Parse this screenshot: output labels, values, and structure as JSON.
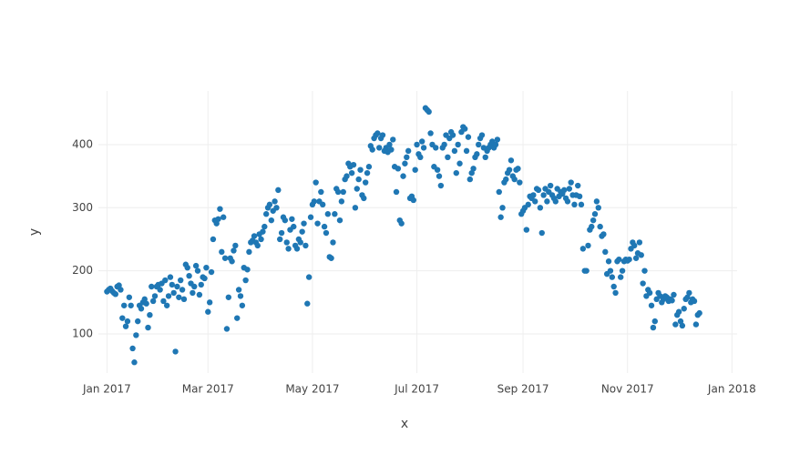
{
  "chart_data": {
    "type": "scatter",
    "x_label": "x",
    "y_label": "y",
    "color": "#1f77b4",
    "grid": true,
    "xlim": [
      "2016-12-27",
      "2018-01-04"
    ],
    "ylim": [
      38,
      485
    ],
    "xticks": [
      {
        "value": "2017-01-01",
        "label": "Jan 2017"
      },
      {
        "value": "2017-03-01",
        "label": "Mar 2017"
      },
      {
        "value": "2017-05-01",
        "label": "May 2017"
      },
      {
        "value": "2017-07-01",
        "label": "Jul 2017"
      },
      {
        "value": "2017-09-01",
        "label": "Sep 2017"
      },
      {
        "value": "2017-11-01",
        "label": "Nov 2017"
      },
      {
        "value": "2018-01-01",
        "label": "Jan 2018"
      }
    ],
    "yticks": [
      100,
      200,
      300,
      400
    ],
    "x": [
      "2017-01-01",
      "2017-01-02",
      "2017-01-03",
      "2017-01-04",
      "2017-01-05",
      "2017-01-06",
      "2017-01-07",
      "2017-01-08",
      "2017-01-09",
      "2017-01-10",
      "2017-01-11",
      "2017-01-12",
      "2017-01-13",
      "2017-01-14",
      "2017-01-15",
      "2017-01-16",
      "2017-01-17",
      "2017-01-18",
      "2017-01-19",
      "2017-01-20",
      "2017-01-21",
      "2017-01-22",
      "2017-01-23",
      "2017-01-24",
      "2017-01-25",
      "2017-01-26",
      "2017-01-27",
      "2017-01-28",
      "2017-01-29",
      "2017-01-30",
      "2017-01-31",
      "2017-02-01",
      "2017-02-02",
      "2017-02-03",
      "2017-02-04",
      "2017-02-05",
      "2017-02-06",
      "2017-02-07",
      "2017-02-08",
      "2017-02-09",
      "2017-02-10",
      "2017-02-11",
      "2017-02-12",
      "2017-02-13",
      "2017-02-14",
      "2017-02-15",
      "2017-02-16",
      "2017-02-17",
      "2017-02-18",
      "2017-02-19",
      "2017-02-20",
      "2017-02-21",
      "2017-02-22",
      "2017-02-23",
      "2017-02-24",
      "2017-02-25",
      "2017-02-26",
      "2017-02-27",
      "2017-02-28",
      "2017-03-01",
      "2017-03-02",
      "2017-03-03",
      "2017-03-04",
      "2017-03-05",
      "2017-03-06",
      "2017-03-07",
      "2017-03-08",
      "2017-03-09",
      "2017-03-10",
      "2017-03-11",
      "2017-03-12",
      "2017-03-13",
      "2017-03-14",
      "2017-03-15",
      "2017-03-16",
      "2017-03-17",
      "2017-03-18",
      "2017-03-19",
      "2017-03-20",
      "2017-03-21",
      "2017-03-22",
      "2017-03-23",
      "2017-03-24",
      "2017-03-25",
      "2017-03-26",
      "2017-03-27",
      "2017-03-28",
      "2017-03-29",
      "2017-03-30",
      "2017-03-31",
      "2017-04-01",
      "2017-04-02",
      "2017-04-03",
      "2017-04-04",
      "2017-04-05",
      "2017-04-06",
      "2017-04-07",
      "2017-04-08",
      "2017-04-09",
      "2017-04-10",
      "2017-04-11",
      "2017-04-12",
      "2017-04-13",
      "2017-04-14",
      "2017-04-15",
      "2017-04-16",
      "2017-04-17",
      "2017-04-18",
      "2017-04-19",
      "2017-04-20",
      "2017-04-21",
      "2017-04-22",
      "2017-04-23",
      "2017-04-24",
      "2017-04-25",
      "2017-04-26",
      "2017-04-27",
      "2017-04-28",
      "2017-04-29",
      "2017-04-30",
      "2017-05-01",
      "2017-05-02",
      "2017-05-03",
      "2017-05-04",
      "2017-05-05",
      "2017-05-06",
      "2017-05-07",
      "2017-05-08",
      "2017-05-09",
      "2017-05-10",
      "2017-05-11",
      "2017-05-12",
      "2017-05-13",
      "2017-05-14",
      "2017-05-15",
      "2017-05-16",
      "2017-05-17",
      "2017-05-18",
      "2017-05-19",
      "2017-05-20",
      "2017-05-21",
      "2017-05-22",
      "2017-05-23",
      "2017-05-24",
      "2017-05-25",
      "2017-05-26",
      "2017-05-27",
      "2017-05-28",
      "2017-05-29",
      "2017-05-30",
      "2017-05-31",
      "2017-06-01",
      "2017-06-02",
      "2017-06-03",
      "2017-06-04",
      "2017-06-05",
      "2017-06-06",
      "2017-06-07",
      "2017-06-08",
      "2017-06-09",
      "2017-06-10",
      "2017-06-11",
      "2017-06-12",
      "2017-06-13",
      "2017-06-14",
      "2017-06-15",
      "2017-06-16",
      "2017-06-17",
      "2017-06-18",
      "2017-06-19",
      "2017-06-20",
      "2017-06-21",
      "2017-06-22",
      "2017-06-23",
      "2017-06-24",
      "2017-06-25",
      "2017-06-26",
      "2017-06-27",
      "2017-06-28",
      "2017-06-29",
      "2017-06-30",
      "2017-07-01",
      "2017-07-02",
      "2017-07-03",
      "2017-07-04",
      "2017-07-05",
      "2017-07-06",
      "2017-07-07",
      "2017-07-08",
      "2017-07-09",
      "2017-07-10",
      "2017-07-11",
      "2017-07-12",
      "2017-07-13",
      "2017-07-14",
      "2017-07-15",
      "2017-07-16",
      "2017-07-17",
      "2017-07-18",
      "2017-07-19",
      "2017-07-20",
      "2017-07-21",
      "2017-07-22",
      "2017-07-23",
      "2017-07-24",
      "2017-07-25",
      "2017-07-26",
      "2017-07-27",
      "2017-07-28",
      "2017-07-29",
      "2017-07-30",
      "2017-07-31",
      "2017-08-01",
      "2017-08-02",
      "2017-08-03",
      "2017-08-04",
      "2017-08-05",
      "2017-08-06",
      "2017-08-07",
      "2017-08-08",
      "2017-08-09",
      "2017-08-10",
      "2017-08-11",
      "2017-08-12",
      "2017-08-13",
      "2017-08-14",
      "2017-08-15",
      "2017-08-16",
      "2017-08-17",
      "2017-08-18",
      "2017-08-19",
      "2017-08-20",
      "2017-08-21",
      "2017-08-22",
      "2017-08-23",
      "2017-08-24",
      "2017-08-25",
      "2017-08-26",
      "2017-08-27",
      "2017-08-28",
      "2017-08-29",
      "2017-08-30",
      "2017-08-31",
      "2017-09-01",
      "2017-09-02",
      "2017-09-03",
      "2017-09-04",
      "2017-09-05",
      "2017-09-06",
      "2017-09-07",
      "2017-09-08",
      "2017-09-09",
      "2017-09-10",
      "2017-09-11",
      "2017-09-12",
      "2017-09-13",
      "2017-09-14",
      "2017-09-15",
      "2017-09-16",
      "2017-09-17",
      "2017-09-18",
      "2017-09-19",
      "2017-09-20",
      "2017-09-21",
      "2017-09-22",
      "2017-09-23",
      "2017-09-24",
      "2017-09-25",
      "2017-09-26",
      "2017-09-27",
      "2017-09-28",
      "2017-09-29",
      "2017-09-30",
      "2017-10-01",
      "2017-10-02",
      "2017-10-03",
      "2017-10-04",
      "2017-10-05",
      "2017-10-06",
      "2017-10-07",
      "2017-10-08",
      "2017-10-09",
      "2017-10-10",
      "2017-10-11",
      "2017-10-12",
      "2017-10-13",
      "2017-10-14",
      "2017-10-15",
      "2017-10-16",
      "2017-10-17",
      "2017-10-18",
      "2017-10-19",
      "2017-10-20",
      "2017-10-21",
      "2017-10-22",
      "2017-10-23",
      "2017-10-24",
      "2017-10-25",
      "2017-10-26",
      "2017-10-27",
      "2017-10-28",
      "2017-10-29",
      "2017-10-30",
      "2017-10-31",
      "2017-11-01",
      "2017-11-02",
      "2017-11-03",
      "2017-11-04",
      "2017-11-05",
      "2017-11-06",
      "2017-11-07",
      "2017-11-08",
      "2017-11-09",
      "2017-11-10",
      "2017-11-11",
      "2017-11-12",
      "2017-11-13",
      "2017-11-14",
      "2017-11-15",
      "2017-11-16",
      "2017-11-17",
      "2017-11-18",
      "2017-11-19",
      "2017-11-20",
      "2017-11-21",
      "2017-11-22",
      "2017-11-23",
      "2017-11-24",
      "2017-11-25",
      "2017-11-26",
      "2017-11-27",
      "2017-11-28",
      "2017-11-29",
      "2017-11-30",
      "2017-12-01",
      "2017-12-02",
      "2017-12-03",
      "2017-12-04",
      "2017-12-05",
      "2017-12-06",
      "2017-12-07",
      "2017-12-08",
      "2017-12-09",
      "2017-12-10",
      "2017-12-11",
      "2017-12-12",
      "2017-12-13"
    ],
    "values": [
      167,
      170,
      172,
      168,
      165,
      163,
      175,
      177,
      170,
      125,
      145,
      112,
      120,
      158,
      145,
      77,
      55,
      98,
      120,
      145,
      140,
      150,
      155,
      148,
      110,
      130,
      175,
      152,
      160,
      175,
      178,
      170,
      180,
      152,
      185,
      145,
      160,
      190,
      178,
      165,
      72,
      175,
      158,
      185,
      170,
      155,
      210,
      205,
      192,
      180,
      165,
      175,
      208,
      200,
      162,
      178,
      190,
      188,
      205,
      135,
      150,
      198,
      250,
      280,
      275,
      282,
      298,
      230,
      285,
      220,
      108,
      158,
      220,
      215,
      232,
      240,
      125,
      170,
      160,
      145,
      205,
      185,
      202,
      230,
      245,
      248,
      255,
      245,
      240,
      258,
      250,
      262,
      270,
      290,
      300,
      305,
      280,
      295,
      310,
      300,
      328,
      250,
      260,
      285,
      280,
      245,
      235,
      265,
      282,
      270,
      240,
      235,
      250,
      245,
      262,
      275,
      240,
      148,
      190,
      285,
      305,
      310,
      340,
      275,
      310,
      325,
      305,
      270,
      260,
      290,
      222,
      220,
      245,
      290,
      330,
      325,
      280,
      310,
      325,
      345,
      350,
      370,
      365,
      355,
      368,
      300,
      330,
      345,
      360,
      320,
      315,
      340,
      355,
      365,
      398,
      392,
      410,
      415,
      418,
      395,
      410,
      415,
      390,
      395,
      388,
      400,
      392,
      408,
      365,
      325,
      362,
      280,
      275,
      350,
      370,
      380,
      390,
      315,
      318,
      312,
      360,
      400,
      385,
      380,
      405,
      395,
      458,
      455,
      452,
      418,
      400,
      365,
      395,
      360,
      350,
      335,
      395,
      400,
      415,
      380,
      410,
      420,
      415,
      390,
      355,
      400,
      370,
      420,
      428,
      425,
      390,
      412,
      345,
      355,
      362,
      380,
      385,
      400,
      410,
      415,
      395,
      380,
      390,
      395,
      400,
      405,
      395,
      400,
      408,
      325,
      285,
      300,
      340,
      345,
      355,
      360,
      375,
      350,
      345,
      360,
      362,
      340,
      290,
      295,
      300,
      265,
      305,
      318,
      315,
      320,
      310,
      330,
      328,
      300,
      260,
      320,
      330,
      310,
      325,
      335,
      320,
      315,
      310,
      330,
      318,
      325,
      322,
      328,
      315,
      310,
      330,
      340,
      320,
      305,
      320,
      335,
      318,
      305,
      235,
      200,
      200,
      240,
      265,
      270,
      280,
      290,
      310,
      300,
      270,
      255,
      258,
      230,
      195,
      215,
      200,
      190,
      175,
      165,
      215,
      218,
      190,
      200,
      215,
      218,
      216,
      218,
      235,
      245,
      240,
      220,
      228,
      245,
      225,
      180,
      200,
      160,
      170,
      165,
      145,
      110,
      120,
      155,
      165,
      160,
      150,
      155,
      160,
      158,
      152,
      155,
      153,
      162,
      115,
      130,
      135,
      120,
      113,
      140,
      155,
      158,
      165,
      150,
      155,
      152,
      115,
      130,
      133
    ]
  }
}
